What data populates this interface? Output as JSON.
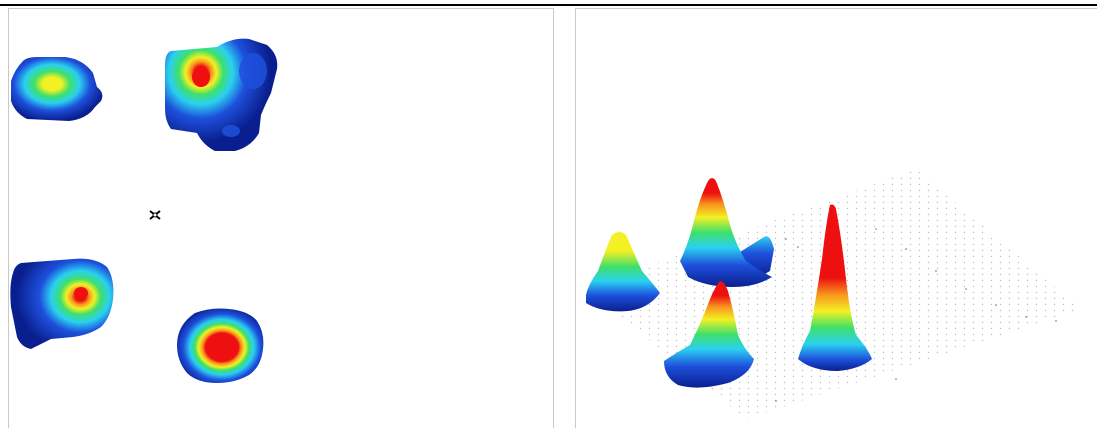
{
  "panels": [
    {
      "view": "2d-filled-contour-heatmap",
      "blobs": 4,
      "marker": "cursor-crosshair-icon"
    },
    {
      "view": "3d-surface-peaks",
      "peaks": 5,
      "background": "dotted-grid-plane"
    }
  ],
  "palette": {
    "navy": "#0a1f8f",
    "blue": "#1e50dc",
    "cyan": "#2ad0f0",
    "green": "#3ee06a",
    "yellow": "#f3f023",
    "orange": "#f7941d",
    "red": "#ee1010",
    "frame": "#c9c9c9"
  }
}
